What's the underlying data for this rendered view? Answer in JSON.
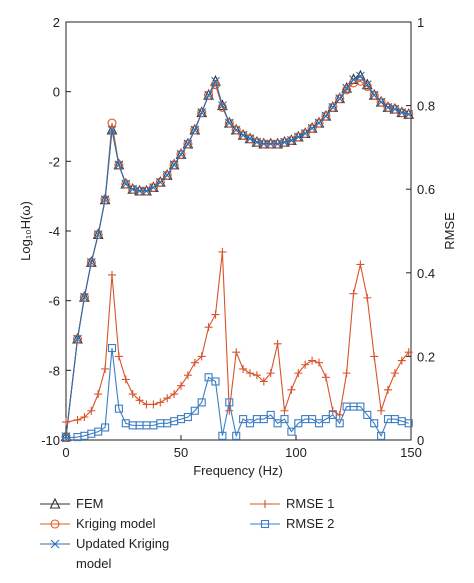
{
  "chart_data": {
    "type": "line",
    "xlabel": "Frequency (Hz)",
    "ylabel": "Log₁₀H(ω)",
    "y2label": "RMSE",
    "x": [
      0,
      5,
      8,
      11,
      14,
      17,
      20,
      23,
      26,
      29,
      32,
      35,
      38,
      41,
      44,
      47,
      50,
      53,
      56,
      59,
      62,
      65,
      68,
      71,
      74,
      77,
      80,
      83,
      86,
      89,
      92,
      95,
      98,
      101,
      104,
      107,
      110,
      113,
      116,
      119,
      122,
      125,
      128,
      131,
      134,
      137,
      140,
      143,
      146,
      149
    ],
    "xlim": [
      0,
      150
    ],
    "xticks": [
      0,
      50,
      100,
      150
    ],
    "ylim": [
      -10,
      2
    ],
    "yticks": [
      -10,
      -8,
      -6,
      -4,
      -2,
      0,
      2
    ],
    "y2lim": [
      0,
      1
    ],
    "y2ticks": [
      0,
      0.2,
      0.4,
      0.6,
      0.8,
      1
    ],
    "series": [
      {
        "name": "FEM",
        "color": "#333333",
        "marker": "triangle",
        "values": [
          -9.9,
          -7.1,
          -5.9,
          -4.9,
          -4.1,
          -3.1,
          -1.1,
          -2.1,
          -2.65,
          -2.8,
          -2.85,
          -2.85,
          -2.75,
          -2.6,
          -2.4,
          -2.1,
          -1.8,
          -1.5,
          -1.1,
          -0.6,
          -0.1,
          0.3,
          -0.4,
          -0.9,
          -1.1,
          -1.25,
          -1.35,
          -1.45,
          -1.5,
          -1.5,
          -1.5,
          -1.45,
          -1.4,
          -1.3,
          -1.2,
          -1.05,
          -0.9,
          -0.7,
          -0.45,
          -0.2,
          0.1,
          0.35,
          0.45,
          0.2,
          -0.1,
          -0.3,
          -0.45,
          -0.5,
          -0.6,
          -0.65
        ]
      },
      {
        "name": "Kriging model",
        "color": "#e05a2b",
        "marker": "circle",
        "values": [
          -9.9,
          -7.1,
          -5.9,
          -4.9,
          -4.1,
          -3.1,
          -0.9,
          -2.1,
          -2.65,
          -2.8,
          -2.85,
          -2.85,
          -2.75,
          -2.6,
          -2.4,
          -2.1,
          -1.8,
          -1.5,
          -1.1,
          -0.6,
          -0.1,
          0.2,
          -0.45,
          -0.9,
          -1.1,
          -1.25,
          -1.35,
          -1.45,
          -1.5,
          -1.5,
          -1.5,
          -1.45,
          -1.4,
          -1.3,
          -1.2,
          -1.05,
          -0.9,
          -0.7,
          -0.45,
          -0.2,
          0.05,
          0.25,
          0.3,
          0.15,
          -0.1,
          -0.3,
          -0.45,
          -0.5,
          -0.6,
          -0.65
        ]
      },
      {
        "name": "Updated Kriging model",
        "color": "#2a6fb4",
        "marker": "x",
        "values": [
          -9.9,
          -7.1,
          -5.9,
          -4.9,
          -4.1,
          -3.1,
          -1.1,
          -2.1,
          -2.65,
          -2.8,
          -2.85,
          -2.85,
          -2.75,
          -2.6,
          -2.4,
          -2.1,
          -1.8,
          -1.5,
          -1.1,
          -0.6,
          -0.1,
          0.3,
          -0.4,
          -0.9,
          -1.1,
          -1.25,
          -1.35,
          -1.45,
          -1.5,
          -1.5,
          -1.5,
          -1.45,
          -1.4,
          -1.3,
          -1.2,
          -1.05,
          -0.9,
          -0.7,
          -0.45,
          -0.2,
          0.1,
          0.35,
          0.45,
          0.2,
          -0.1,
          -0.3,
          -0.45,
          -0.5,
          -0.6,
          -0.65
        ]
      },
      {
        "name": "RMSE 1",
        "color": "#d9532b",
        "marker": "plus",
        "axis": "y2",
        "values": [
          0.043,
          0.048,
          0.055,
          0.07,
          0.11,
          0.17,
          0.395,
          0.2,
          0.145,
          0.11,
          0.095,
          0.085,
          0.085,
          0.09,
          0.1,
          0.11,
          0.13,
          0.155,
          0.185,
          0.2,
          0.27,
          0.3,
          0.45,
          0.07,
          0.21,
          0.17,
          0.16,
          0.155,
          0.14,
          0.16,
          0.23,
          0.07,
          0.12,
          0.16,
          0.18,
          0.19,
          0.185,
          0.15,
          0.07,
          0.06,
          0.16,
          0.35,
          0.42,
          0.34,
          0.2,
          0.07,
          0.12,
          0.16,
          0.19,
          0.21
        ]
      },
      {
        "name": "RMSE 2",
        "color": "#3b7dc4",
        "marker": "square",
        "axis": "y2",
        "values": [
          0.005,
          0.007,
          0.01,
          0.015,
          0.02,
          0.03,
          0.22,
          0.075,
          0.04,
          0.035,
          0.035,
          0.035,
          0.035,
          0.04,
          0.04,
          0.045,
          0.05,
          0.055,
          0.07,
          0.09,
          0.15,
          0.14,
          0.01,
          0.09,
          0.01,
          0.05,
          0.04,
          0.05,
          0.05,
          0.06,
          0.04,
          0.05,
          0.02,
          0.04,
          0.05,
          0.05,
          0.04,
          0.05,
          0.06,
          0.04,
          0.08,
          0.08,
          0.08,
          0.06,
          0.04,
          0.01,
          0.05,
          0.05,
          0.045,
          0.04
        ]
      }
    ]
  }
}
